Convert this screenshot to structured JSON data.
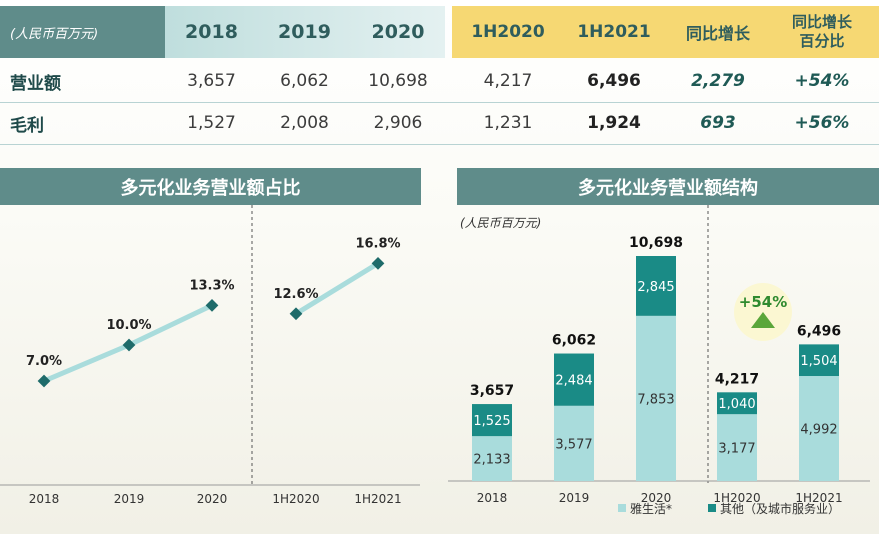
{
  "table": {
    "unit_label": "(人民币百万元)",
    "columns": [
      "2018",
      "2019",
      "2020",
      "1H2020",
      "1H2021",
      "同比增长",
      "同比增长 百分比"
    ],
    "rows": [
      {
        "label": "营业额",
        "values": [
          "3,657",
          "6,062",
          "10,698",
          "4,217",
          "6,496",
          "2,279",
          "+54%"
        ]
      },
      {
        "label": "毛利",
        "values": [
          "1,527",
          "2,008",
          "2,906",
          "1,231",
          "1,924",
          "693",
          "+56%"
        ]
      }
    ]
  },
  "colors": {
    "teal_dark": "#1a8b86",
    "teal_light": "#a9dcdc",
    "header_teal": "#cfe6e6",
    "header_gold": "#f6d873",
    "panel_title": "#5f8c8a",
    "line": "#a9dcdc",
    "marker": "#1e6b6a"
  },
  "chart_data": [
    {
      "type": "line",
      "title": "多元化业务营业额占比",
      "categories": [
        "2018",
        "2019",
        "2020",
        "1H2020",
        "1H2021"
      ],
      "series": [
        {
          "segment": "annual",
          "x": [
            "2018",
            "2019",
            "2020"
          ],
          "values": [
            7.0,
            10.0,
            13.3
          ],
          "labels": [
            "7.0%",
            "10.0%",
            "13.3%"
          ]
        },
        {
          "segment": "half-year",
          "x": [
            "1H2020",
            "1H2021"
          ],
          "values": [
            12.6,
            16.8
          ],
          "labels": [
            "12.6%",
            "16.8%"
          ]
        }
      ],
      "ylim": [
        0,
        20
      ],
      "grid": false
    },
    {
      "type": "bar",
      "stacked": true,
      "title": "多元化业务营业额结构",
      "unit_label": "(人民币百万元)",
      "categories": [
        "2018",
        "2019",
        "2020",
        "1H2020",
        "1H2021"
      ],
      "series": [
        {
          "name": "雅生活*",
          "values": [
            2133,
            3577,
            7853,
            3177,
            4992
          ],
          "color": "#a9dcdc"
        },
        {
          "name": "其他（及城市服务业）",
          "values": [
            1525,
            2484,
            2845,
            1040,
            1504
          ],
          "color": "#1a8b86"
        }
      ],
      "totals": [
        "3,657",
        "6,062",
        "10,698",
        "4,217",
        "6,496"
      ],
      "segment_labels": {
        "bottom": [
          "2,133",
          "3,577",
          "7,853",
          "3,177",
          "4,992"
        ],
        "top": [
          "1,525",
          "2,484",
          "2,845",
          "1,040",
          "1,504"
        ]
      },
      "callout": "+54%",
      "legend": "bottom-right",
      "ylim": [
        0,
        12000
      ]
    }
  ]
}
